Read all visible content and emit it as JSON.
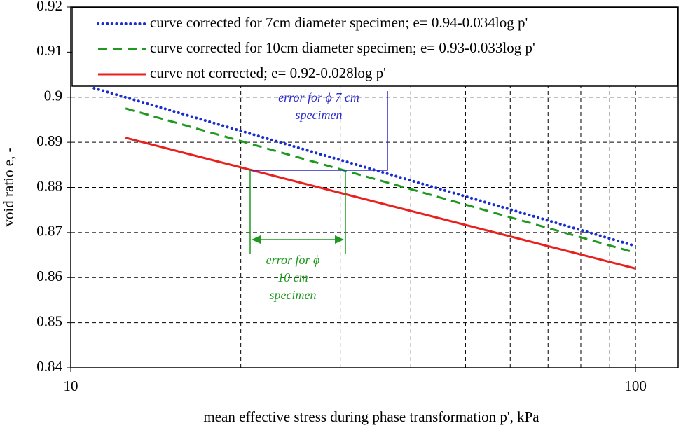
{
  "chart_data": {
    "type": "line",
    "xlabel": "mean effective stress during phase transformation p', kPa",
    "ylabel": "void ratio e, -",
    "xscale": "log",
    "xlim": [
      10,
      119
    ],
    "xticks": [
      10,
      100
    ],
    "xminor": [
      20,
      30,
      40,
      50,
      60,
      70,
      80,
      90
    ],
    "ylim": [
      0.84,
      0.92
    ],
    "yticks": [
      0.84,
      0.85,
      0.86,
      0.87,
      0.88,
      0.89,
      0.9,
      0.91,
      0.92
    ],
    "grid": true,
    "legend": "top",
    "series": [
      {
        "name": "curve corrected for 7cm diameter specimen; e= 0.94-0.034log p'",
        "color": "#1a2ed0",
        "style": "dotted",
        "x": [
          11,
          100
        ],
        "values": [
          0.902,
          0.867
        ]
      },
      {
        "name": "curve corrected for 10cm diameter specimen; e= 0.93-0.033log p'",
        "color": "#1f9a1f",
        "style": "dashed",
        "x": [
          12.5,
          100
        ],
        "values": [
          0.8975,
          0.8655
        ]
      },
      {
        "name": "curve not corrected; e= 0.92-0.028log p'",
        "color": "#e8201e",
        "style": "solid",
        "x": [
          12.5,
          100
        ],
        "values": [
          0.891,
          0.862
        ]
      }
    ],
    "annotations": [
      {
        "lines": [
          "error for ϕ 7 cm",
          "specimen"
        ],
        "color": "#2a2ad0"
      },
      {
        "lines": [
          "error for ϕ",
          "10 cm",
          "specimen"
        ],
        "color": "#1f9a1f"
      }
    ]
  }
}
